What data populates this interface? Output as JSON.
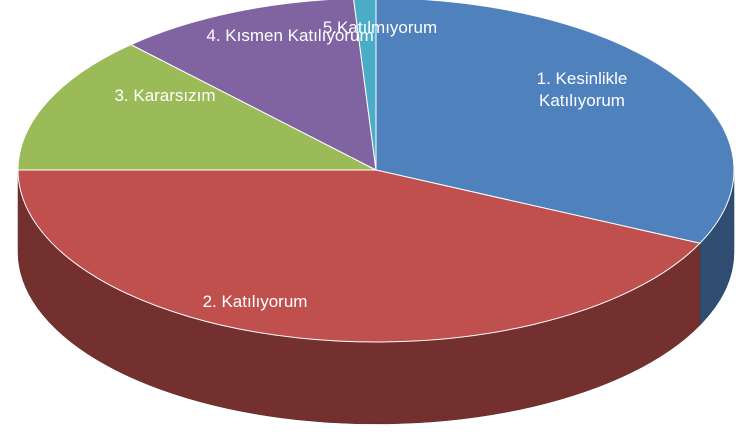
{
  "chart_data": {
    "type": "pie",
    "categories": [
      "1. Kesinlikle Katılıyorum",
      "2. Katılıyorum",
      "3. Kararsızım",
      "4. Kısmen Katılıyorum",
      "5.Katılmıyorum"
    ],
    "values": [
      32,
      43,
      13,
      11,
      1
    ],
    "colors": [
      "#4f81bd",
      "#c0504d",
      "#9bbb59",
      "#8064a2",
      "#4bacc6"
    ]
  }
}
